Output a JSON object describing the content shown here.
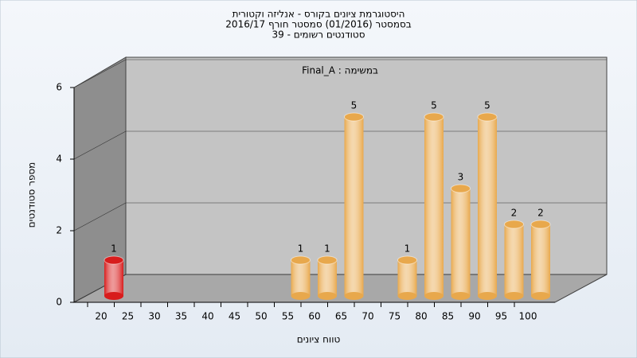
{
  "chart_data": {
    "type": "bar",
    "title": "היסטוגרמת ציונים בקורס - אנליזה וקטורית",
    "subtitle": "בסמסטר  (01/2016)  סמסטר חורף 2016/17",
    "subtitle2": "סטודנטים רשומים - 39",
    "annotation": "Final_A : במשימה",
    "x_label": "טווח ציונים",
    "y_label": "מספר סטודנטים",
    "categories": [
      "20",
      "25",
      "30",
      "35",
      "40",
      "45",
      "50",
      "55",
      "60",
      "65",
      "70",
      "75",
      "80",
      "85",
      "90",
      "95",
      "100"
    ],
    "values": [
      1,
      0,
      0,
      0,
      0,
      0,
      0,
      1,
      1,
      5,
      0,
      1,
      5,
      3,
      5,
      2,
      2
    ],
    "colors": [
      "#d81c1c",
      "#e8a84c",
      "#e8a84c",
      "#e8a84c",
      "#e8a84c",
      "#e8a84c",
      "#e8a84c",
      "#e8a84c",
      "#e8a84c",
      "#e8a84c",
      "#e8a84c",
      "#e8a84c",
      "#e8a84c",
      "#e8a84c",
      "#e8a84c",
      "#e8a84c",
      "#e8a84c"
    ],
    "ylim": [
      0,
      6
    ],
    "yticks": [
      0,
      2,
      4,
      6
    ],
    "grid": true
  }
}
